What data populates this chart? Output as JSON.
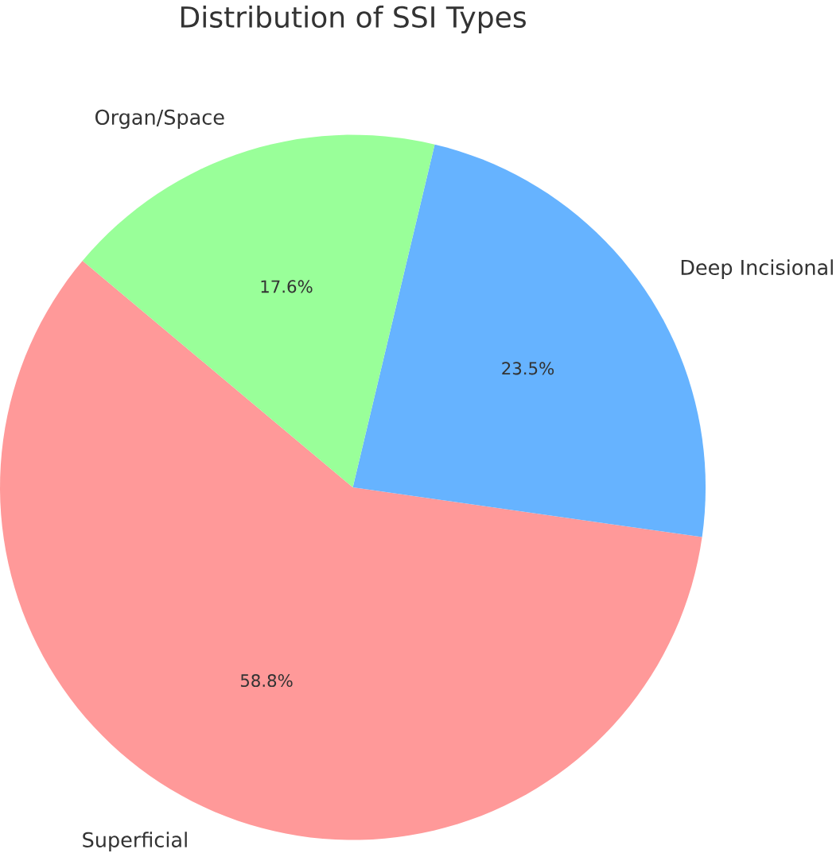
{
  "chart_data": {
    "type": "pie",
    "title": "Distribution of SSI Types",
    "categories": [
      "Superficial",
      "Deep Incisional",
      "Organ/Space"
    ],
    "values": [
      58.8,
      23.5,
      17.6
    ],
    "colors": [
      "#ff9999",
      "#66b3ff",
      "#99ff99"
    ],
    "value_labels": [
      "58.8%",
      "23.5%",
      "17.6%"
    ]
  }
}
